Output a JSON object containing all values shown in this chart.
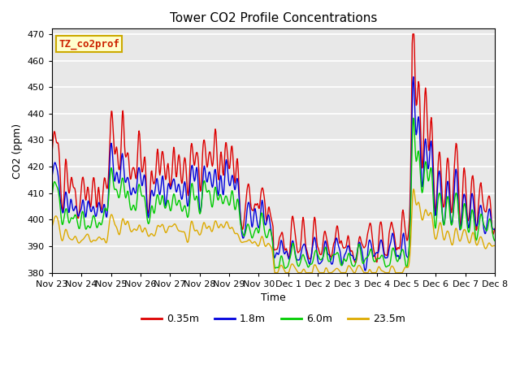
{
  "title": "Tower CO2 Profile Concentrations",
  "xlabel": "Time",
  "ylabel": "CO2 (ppm)",
  "ylim": [
    380,
    472
  ],
  "yticks": [
    380,
    390,
    400,
    410,
    420,
    430,
    440,
    450,
    460,
    470
  ],
  "label_box_text": "TZ_co2prof",
  "label_box_bg": "#ffffcc",
  "label_box_edge": "#ccaa00",
  "label_box_text_color": "#cc2200",
  "background_color": "#ffffff",
  "plot_bg_color": "#e8e8e8",
  "grid_color": "#ffffff",
  "lines": [
    {
      "label": "0.35m",
      "color": "#dd0000",
      "lw": 1.0
    },
    {
      "label": "1.8m",
      "color": "#0000dd",
      "lw": 1.0
    },
    {
      "label": "6.0m",
      "color": "#00cc00",
      "lw": 1.0
    },
    {
      "label": "23.5m",
      "color": "#ddaa00",
      "lw": 1.0
    }
  ],
  "xtick_labels": [
    "Nov 23",
    "Nov 24",
    "Nov 25",
    "Nov 26",
    "Nov 27",
    "Nov 28",
    "Nov 29",
    "Nov 30",
    "Dec 1",
    "Dec 2",
    "Dec 3",
    "Dec 4",
    "Dec 5",
    "Dec 6",
    "Dec 7",
    "Dec 8"
  ],
  "n_points": 768
}
